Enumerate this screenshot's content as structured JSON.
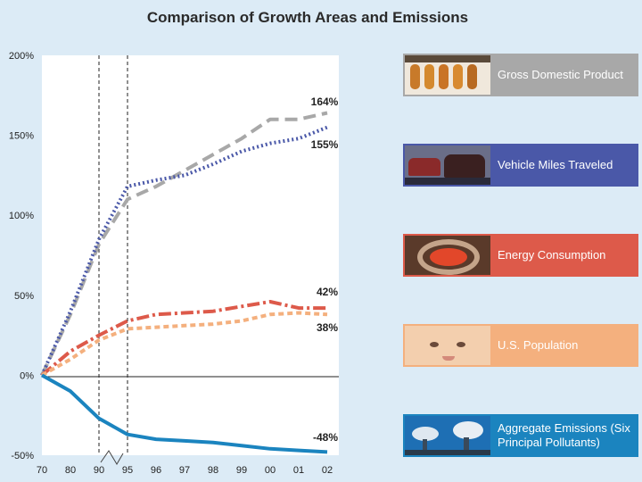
{
  "chart_data": {
    "type": "line",
    "title": "Comparison of Growth Areas and Emissions",
    "x": [
      "70",
      "80",
      "90",
      "95",
      "96",
      "97",
      "98",
      "99",
      "00",
      "01",
      "02"
    ],
    "ylim": [
      -50,
      200
    ],
    "yticks": [
      "200%",
      "150%",
      "100%",
      "50%",
      "0%",
      "-50%"
    ],
    "grid": false,
    "legend_placement": "right",
    "series": [
      {
        "name": "Gross Domestic Product",
        "values": [
          0,
          38,
          82,
          110,
          118,
          128,
          138,
          148,
          160,
          160,
          164
        ],
        "end_label": "164%",
        "color": "#a8a8a8"
      },
      {
        "name": "Vehicle Miles Traveled",
        "values": [
          0,
          40,
          85,
          118,
          122,
          125,
          132,
          140,
          145,
          148,
          155
        ],
        "end_label": "155%",
        "color": "#4a58a8"
      },
      {
        "name": "Energy Consumption",
        "values": [
          0,
          15,
          25,
          34,
          38,
          39,
          40,
          43,
          46,
          42,
          42
        ],
        "end_label": "42%",
        "color": "#dd5a4a"
      },
      {
        "name": "U.S. Population",
        "values": [
          0,
          10,
          22,
          29,
          30,
          31,
          32,
          34,
          38,
          39,
          38
        ],
        "end_label": "38%",
        "color": "#f4b07e"
      },
      {
        "name": "Aggregate Emissions (Six Principal Pollutants)",
        "values": [
          0,
          -10,
          -27,
          -37,
          -40,
          -41,
          -42,
          -44,
          -46,
          -47,
          -48
        ],
        "end_label": "-48%",
        "color": "#1b84bf"
      }
    ]
  },
  "legend": [
    {
      "label": "Gross Domestic Product",
      "bg": "#a8a8a8"
    },
    {
      "label": "Vehicle Miles Traveled",
      "bg": "#4a58a8"
    },
    {
      "label": "Energy Consumption",
      "bg": "#dd5a4a"
    },
    {
      "label": "U.S. Population",
      "bg": "#f4b07e"
    },
    {
      "label": "Aggregate Emissions (Six Principal Pollutants)",
      "bg": "#1b84bf"
    }
  ],
  "icons": [
    "gdp-photo-icon",
    "traffic-photo-icon",
    "energy-photo-icon",
    "baby-photo-icon",
    "smokestack-photo-icon"
  ]
}
